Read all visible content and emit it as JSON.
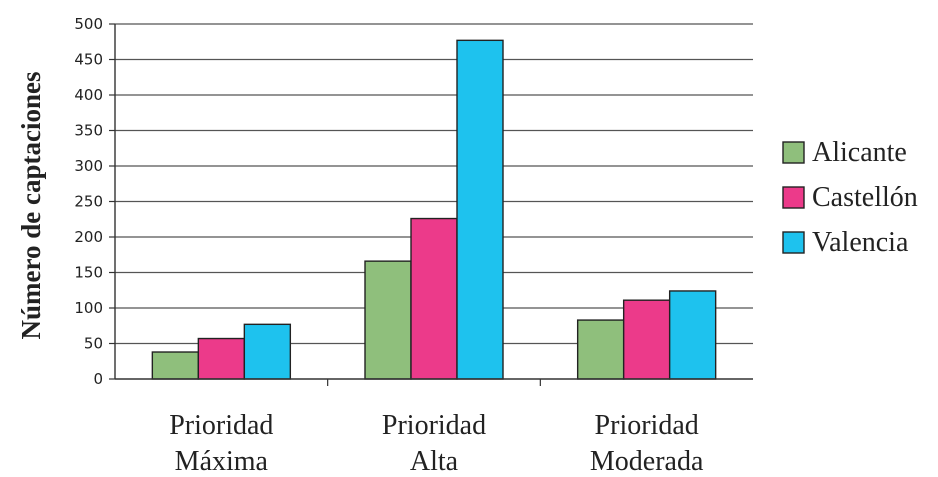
{
  "chart_data": {
    "type": "bar",
    "title": "",
    "xlabel": "",
    "ylabel": "Número de captaciones",
    "ylim": [
      0,
      500
    ],
    "yticks": [
      0,
      50,
      100,
      150,
      200,
      250,
      300,
      350,
      400,
      450,
      500
    ],
    "grid": true,
    "legend_position": "right",
    "categories": [
      [
        "Prioridad",
        "Máxima"
      ],
      [
        "Prioridad",
        "Alta"
      ],
      [
        "Prioridad",
        "Moderada"
      ]
    ],
    "series": [
      {
        "name": "Alicante",
        "color": "#8fbf7c",
        "values": [
          38,
          166,
          83
        ]
      },
      {
        "name": "Castellón",
        "color": "#ec3a8a",
        "values": [
          57,
          226,
          111
        ]
      },
      {
        "name": "Valencia",
        "color": "#1ec2ee",
        "values": [
          77,
          477,
          124
        ]
      }
    ]
  }
}
